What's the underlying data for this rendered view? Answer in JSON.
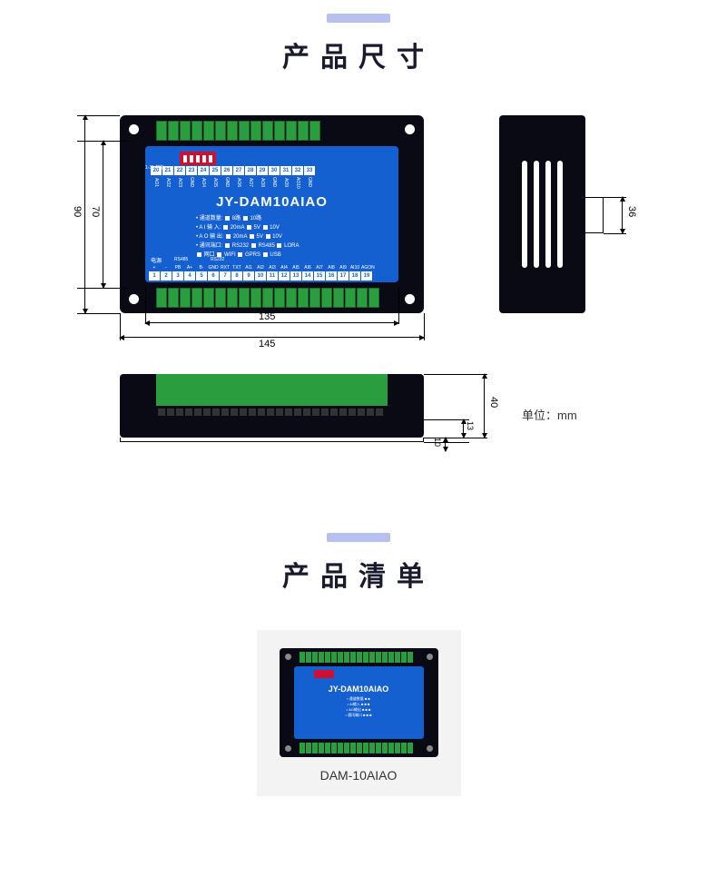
{
  "section1": {
    "title": "产品尺寸",
    "model": "JY-DAM10AIAO",
    "addr_label": "1-31\n地址",
    "power_label": "电源",
    "rs485_label": "RS485",
    "rs232_label": "RS232",
    "top_pins": [
      "20",
      "21",
      "22",
      "23",
      "24",
      "25",
      "26",
      "27",
      "28",
      "29",
      "30",
      "31",
      "32",
      "33"
    ],
    "top_pin_labels": [
      "AO1",
      "AO2",
      "AO3",
      "GND",
      "AO4",
      "AO5",
      "GND",
      "AO6",
      "AO7",
      "AO8",
      "GND",
      "AO9",
      "AO10",
      "GND"
    ],
    "bottom_pins": [
      "1",
      "2",
      "3",
      "4",
      "5",
      "6",
      "7",
      "8",
      "9",
      "10",
      "11",
      "12",
      "13",
      "14",
      "15",
      "16",
      "17",
      "18",
      "19"
    ],
    "bottom_pin_labels": [
      "+",
      "-",
      "PB",
      "A+",
      "B-",
      "GND",
      "RXT",
      "TXT",
      "AI1",
      "AI2",
      "AI3",
      "AI4",
      "AI5",
      "AI6",
      "AI7",
      "AI8",
      "AI9",
      "AI10",
      "AGON"
    ],
    "specs": [
      "• 通道数量:  ■ 8路  ■ 10路",
      "• A I 输 入:  ■ 20mA ■ 5V ■ 10V",
      "• A O 输 出:  ■ 20mA ■ 5V ■ 10V",
      "• 通讯端口:  ■ RS232 ■ RS485 ■ LORA",
      "              ■ 网口 ■ WIFI ■ GPRS ■ USB"
    ],
    "dimensions": {
      "width_inner": "135",
      "width_outer": "145",
      "height_inner": "70",
      "height_outer": "90",
      "side_notch": "36",
      "front_height": "40",
      "front_step1": "13",
      "front_step2": "10",
      "unit": "单位：mm"
    }
  },
  "section2": {
    "title": "产品清单",
    "product_name": "DAM-10AIAO",
    "mini_model": "JY-DAM10AIAO"
  }
}
